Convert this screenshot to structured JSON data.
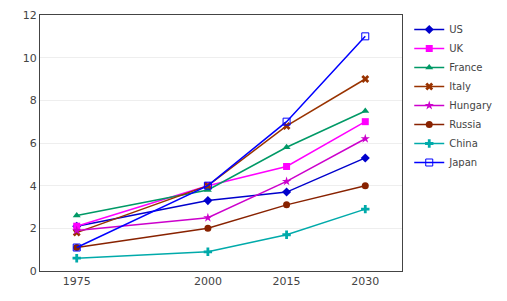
{
  "chart_data": {
    "type": "line",
    "x": [
      1975,
      2000,
      2015,
      2030
    ],
    "series": [
      {
        "name": "US",
        "values": [
          2.1,
          3.3,
          3.7,
          5.3
        ],
        "color": "#0000CC",
        "marker": "diamond"
      },
      {
        "name": "UK",
        "values": [
          2.1,
          4.0,
          4.9,
          7.0
        ],
        "color": "#FF00FF",
        "marker": "square"
      },
      {
        "name": "France",
        "values": [
          2.6,
          3.8,
          5.8,
          7.5
        ],
        "color": "#009966",
        "marker": "triangle-up"
      },
      {
        "name": "Italy",
        "values": [
          1.8,
          4.0,
          6.8,
          9.0
        ],
        "color": "#993300",
        "marker": "x"
      },
      {
        "name": "Hungary",
        "values": [
          1.9,
          2.5,
          4.2,
          6.2
        ],
        "color": "#CC00CC",
        "marker": "star"
      },
      {
        "name": "Russia",
        "values": [
          1.1,
          2.0,
          3.1,
          4.0
        ],
        "color": "#882200",
        "marker": "circle"
      },
      {
        "name": "China",
        "values": [
          0.6,
          0.9,
          1.7,
          2.9
        ],
        "color": "#00AAAA",
        "marker": "cross"
      },
      {
        "name": "Japan",
        "values": [
          1.1,
          4.0,
          7.0,
          11.0
        ],
        "color": "#0000FF",
        "marker": "square-open"
      }
    ],
    "xlim": [
      1968,
      2037
    ],
    "xticks": [
      1975,
      2000,
      2015,
      2030
    ],
    "ylim": [
      0,
      12
    ],
    "yticks": [
      0,
      2,
      4,
      6,
      8,
      10,
      12
    ],
    "grid": "y",
    "legend": "right"
  }
}
